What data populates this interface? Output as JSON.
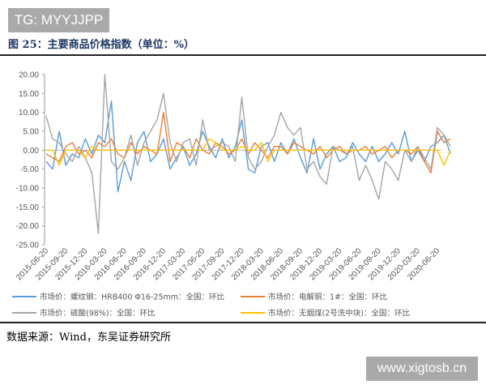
{
  "watermark_top": "TG: MYYJJPP",
  "watermark_bottom": "www.xigtosb.cn",
  "figure_title": "图 25：主要商品价格指数（单位：%）",
  "source": "数据来源：Wind，东吴证券研究所",
  "chart_data": {
    "type": "line",
    "ylim": [
      -25,
      20
    ],
    "yticks": [
      "20.00",
      "15.00",
      "10.00",
      "5.00",
      "0.00",
      "-5.00",
      "-10.00",
      "-15.00",
      "-20.00",
      "-25.00"
    ],
    "xticks": [
      "2015-06-20",
      "2015-09-20",
      "2015-12-20",
      "2016-03-20",
      "2016-06-20",
      "2016-09-20",
      "2016-12-20",
      "2017-03-20",
      "2017-06-20",
      "2017-09-20",
      "2017-12-20",
      "2018-03-20",
      "2018-06-20",
      "2018-09-20",
      "2018-12-20",
      "2019-03-20",
      "2019-06-20",
      "2019-09-20",
      "2019-12-20",
      "2020-03-20",
      "2020-06-20"
    ],
    "x_start": "2015-06",
    "x_step": "month",
    "legend_placement": "bottom",
    "series": [
      {
        "name": "市场价：螺纹钢：HRB400 Φ16-25mm：全国：环比",
        "color": "#5b9bd5",
        "values": [
          -3,
          -5,
          5,
          -4,
          -1,
          -2,
          3,
          -1,
          4,
          2,
          13,
          -11,
          -3,
          -8,
          2,
          5,
          -3,
          -1,
          3,
          -5,
          -2,
          1,
          -4,
          -1,
          5,
          1,
          -2,
          3,
          -2,
          1,
          8,
          -5,
          -6,
          1,
          2,
          -3,
          2,
          -1,
          3,
          -2,
          -6,
          3,
          -5,
          -1,
          1,
          -3,
          -2,
          2,
          -1,
          -3,
          1,
          -3,
          -1,
          2,
          -1,
          5,
          -3,
          0,
          -3,
          1,
          2,
          4,
          -1
        ]
      },
      {
        "name": "市场价：电解铜：1#：全国：环比",
        "color": "#ed7d31",
        "values": [
          -1,
          -2,
          -3,
          1,
          2,
          -1,
          0,
          -2,
          2,
          1,
          3,
          -1,
          -2,
          2,
          -1,
          1,
          0,
          -1,
          10,
          -3,
          2,
          1,
          -2,
          3,
          0,
          -1,
          2,
          1,
          -1,
          0,
          3,
          -1,
          2,
          0,
          -2,
          1,
          1,
          -1,
          2,
          1,
          0,
          -1,
          1,
          -2,
          0,
          1,
          -1,
          0,
          0,
          1,
          -1,
          0,
          1,
          -2,
          0,
          0,
          -1,
          1,
          -3,
          -6,
          5,
          2,
          3
        ]
      },
      {
        "name": "市场价：硫酸(98%)：全国：环比",
        "color": "#a5a5a5",
        "values": [
          9,
          3,
          2,
          -1,
          -3,
          1,
          -2,
          -6,
          -22,
          20,
          -3,
          -5,
          -2,
          4,
          -4,
          2,
          5,
          8,
          15,
          2,
          -3,
          2,
          3,
          -4,
          8,
          0,
          1,
          2,
          1,
          -3,
          14,
          -2,
          -5,
          -3,
          1,
          4,
          10,
          6,
          4,
          6,
          -5,
          -3,
          -7,
          -9,
          1,
          0,
          -1,
          1,
          -8,
          -4,
          -8,
          -13,
          -3,
          -5,
          -8,
          0,
          -3,
          1,
          -2,
          -5,
          6,
          4,
          1
        ]
      },
      {
        "name": "市场价：无烟煤(2号洗中块)：全国：环比",
        "color": "#ffc000",
        "values": [
          0,
          0,
          -4,
          0,
          0,
          0,
          -2,
          1,
          0,
          0,
          0,
          0,
          0,
          0,
          0,
          0,
          0,
          0,
          0,
          0,
          0,
          0,
          0,
          0,
          0,
          3,
          2,
          0,
          0,
          0,
          1,
          0,
          0,
          2,
          -3,
          0,
          0,
          0,
          0,
          0,
          0,
          0,
          0,
          0,
          0,
          0,
          0,
          0,
          0,
          0,
          0,
          0,
          0,
          0,
          0,
          0,
          0,
          0,
          0,
          0,
          0,
          -4,
          0
        ]
      }
    ]
  }
}
